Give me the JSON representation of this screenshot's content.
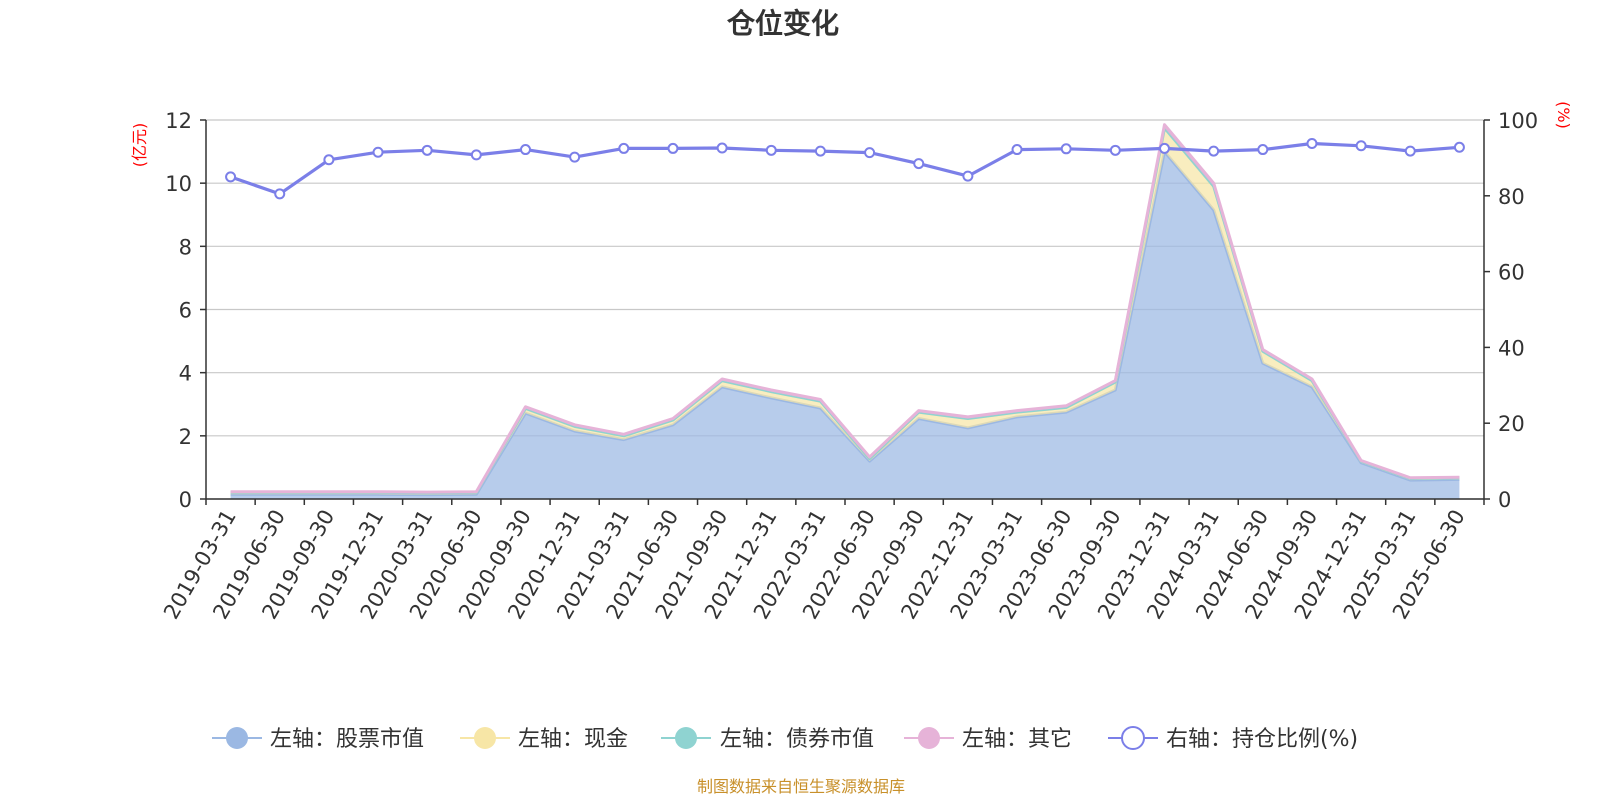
{
  "chart_data": {
    "type": "area",
    "title": "仓位变化",
    "left_axis_unit": "(亿元)",
    "right_axis_unit": "(%)",
    "left_ylim": [
      0,
      12
    ],
    "left_ticks": [
      "0",
      "2",
      "4",
      "6",
      "8",
      "10",
      "12"
    ],
    "right_ylim": [
      0,
      100
    ],
    "right_ticks": [
      "0",
      "20",
      "40",
      "60",
      "80",
      "100"
    ],
    "grid": true,
    "legend_position": "bottom",
    "categories": [
      "2019-03-31",
      "2019-06-30",
      "2019-09-30",
      "2019-12-31",
      "2020-03-31",
      "2020-06-30",
      "2020-09-30",
      "2020-12-31",
      "2021-03-31",
      "2021-06-30",
      "2021-09-30",
      "2021-12-31",
      "2022-03-31",
      "2022-06-30",
      "2022-09-30",
      "2022-12-31",
      "2023-03-31",
      "2023-06-30",
      "2023-09-30",
      "2023-12-31",
      "2024-03-31",
      "2024-06-30",
      "2024-09-30",
      "2024-12-31",
      "2025-03-31",
      "2025-06-30"
    ],
    "series": [
      {
        "name": "左轴：股票市值",
        "axis": "left",
        "kind": "stacked-area",
        "color": "#9bb8e3",
        "values": [
          0.15,
          0.15,
          0.15,
          0.15,
          0.14,
          0.15,
          2.72,
          2.15,
          1.88,
          2.35,
          3.55,
          3.2,
          2.88,
          1.2,
          2.55,
          2.25,
          2.6,
          2.75,
          3.45,
          11.0,
          9.15,
          4.3,
          3.55,
          1.15,
          0.6,
          0.62
        ]
      },
      {
        "name": "左轴：现金",
        "axis": "left",
        "kind": "stacked-area",
        "color": "#f7e6a6",
        "values": [
          0.06,
          0.06,
          0.06,
          0.06,
          0.06,
          0.06,
          0.15,
          0.15,
          0.12,
          0.15,
          0.2,
          0.2,
          0.22,
          0.08,
          0.2,
          0.3,
          0.15,
          0.15,
          0.25,
          0.75,
          0.75,
          0.38,
          0.2,
          0.05,
          0.05,
          0.05
        ]
      },
      {
        "name": "左轴：债券市值",
        "axis": "left",
        "kind": "stacked-area",
        "color": "#8fd3d1",
        "values": [
          0,
          0,
          0,
          0,
          0,
          0,
          0,
          0,
          0,
          0,
          0,
          0,
          0,
          0,
          0,
          0,
          0,
          0,
          0,
          0,
          0,
          0,
          0,
          0,
          0,
          0
        ]
      },
      {
        "name": "左轴：其它",
        "axis": "left",
        "kind": "stacked-area",
        "color": "#e6b3d8",
        "values": [
          0.02,
          0.02,
          0.02,
          0.02,
          0.02,
          0.02,
          0.05,
          0.05,
          0.05,
          0.05,
          0.05,
          0.05,
          0.05,
          0.05,
          0.05,
          0.05,
          0.05,
          0.05,
          0.05,
          0.1,
          0.1,
          0.05,
          0.05,
          0.02,
          0.02,
          0.02
        ]
      },
      {
        "name": "右轴：持仓比例(%)",
        "axis": "right",
        "kind": "line",
        "color": "#7b7fe8",
        "values": [
          85,
          80.5,
          89.5,
          91.5,
          92,
          90.8,
          92.2,
          90.2,
          92.5,
          92.5,
          92.6,
          92,
          91.8,
          91.4,
          88.5,
          85.2,
          92.2,
          92.4,
          92,
          92.5,
          91.8,
          92.2,
          93.8,
          93.2,
          91.8,
          92.8
        ]
      }
    ]
  },
  "source_text": "制图数据来自恒生聚源数据库"
}
